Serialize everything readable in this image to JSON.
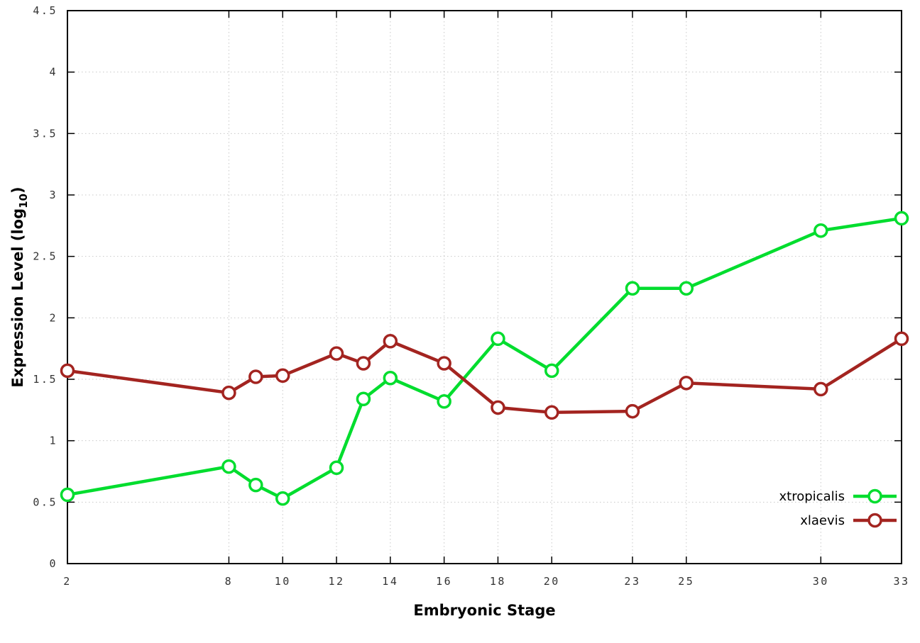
{
  "chart_data": {
    "type": "line",
    "title": "",
    "xlabel": "Embryonic Stage",
    "ylabel": "Expression Level (log10)",
    "ylabel_parts": {
      "main": "Expression Level (log",
      "sub": "10",
      "end": ")"
    },
    "xlim": [
      2,
      33
    ],
    "ylim": [
      0,
      4.5
    ],
    "x_ticks": [
      2,
      8,
      10,
      12,
      14,
      16,
      18,
      20,
      23,
      25,
      30,
      33
    ],
    "y_ticks": [
      0,
      0.5,
      1,
      1.5,
      2,
      2.5,
      3,
      3.5,
      4,
      4.5
    ],
    "grid": true,
    "legend_position": "bottom-right-inside",
    "x": [
      2,
      8,
      9,
      10,
      12,
      13,
      14,
      16,
      18,
      20,
      23,
      25,
      30,
      33
    ],
    "series": [
      {
        "name": "xtropicalis",
        "color": "#00dd2e",
        "values": [
          0.56,
          0.79,
          0.64,
          0.53,
          0.78,
          1.34,
          1.51,
          1.32,
          1.83,
          1.57,
          2.24,
          2.24,
          2.71,
          2.81
        ]
      },
      {
        "name": "xlaevis",
        "color": "#a32420",
        "values": [
          1.57,
          1.39,
          1.52,
          1.53,
          1.71,
          1.63,
          1.81,
          1.63,
          1.27,
          1.23,
          1.24,
          1.47,
          1.42,
          1.83
        ]
      }
    ],
    "colors": {
      "background": "#ffffff",
      "border": "#000000",
      "grid": "#c8c8c8",
      "tick_text": "#333333"
    }
  }
}
